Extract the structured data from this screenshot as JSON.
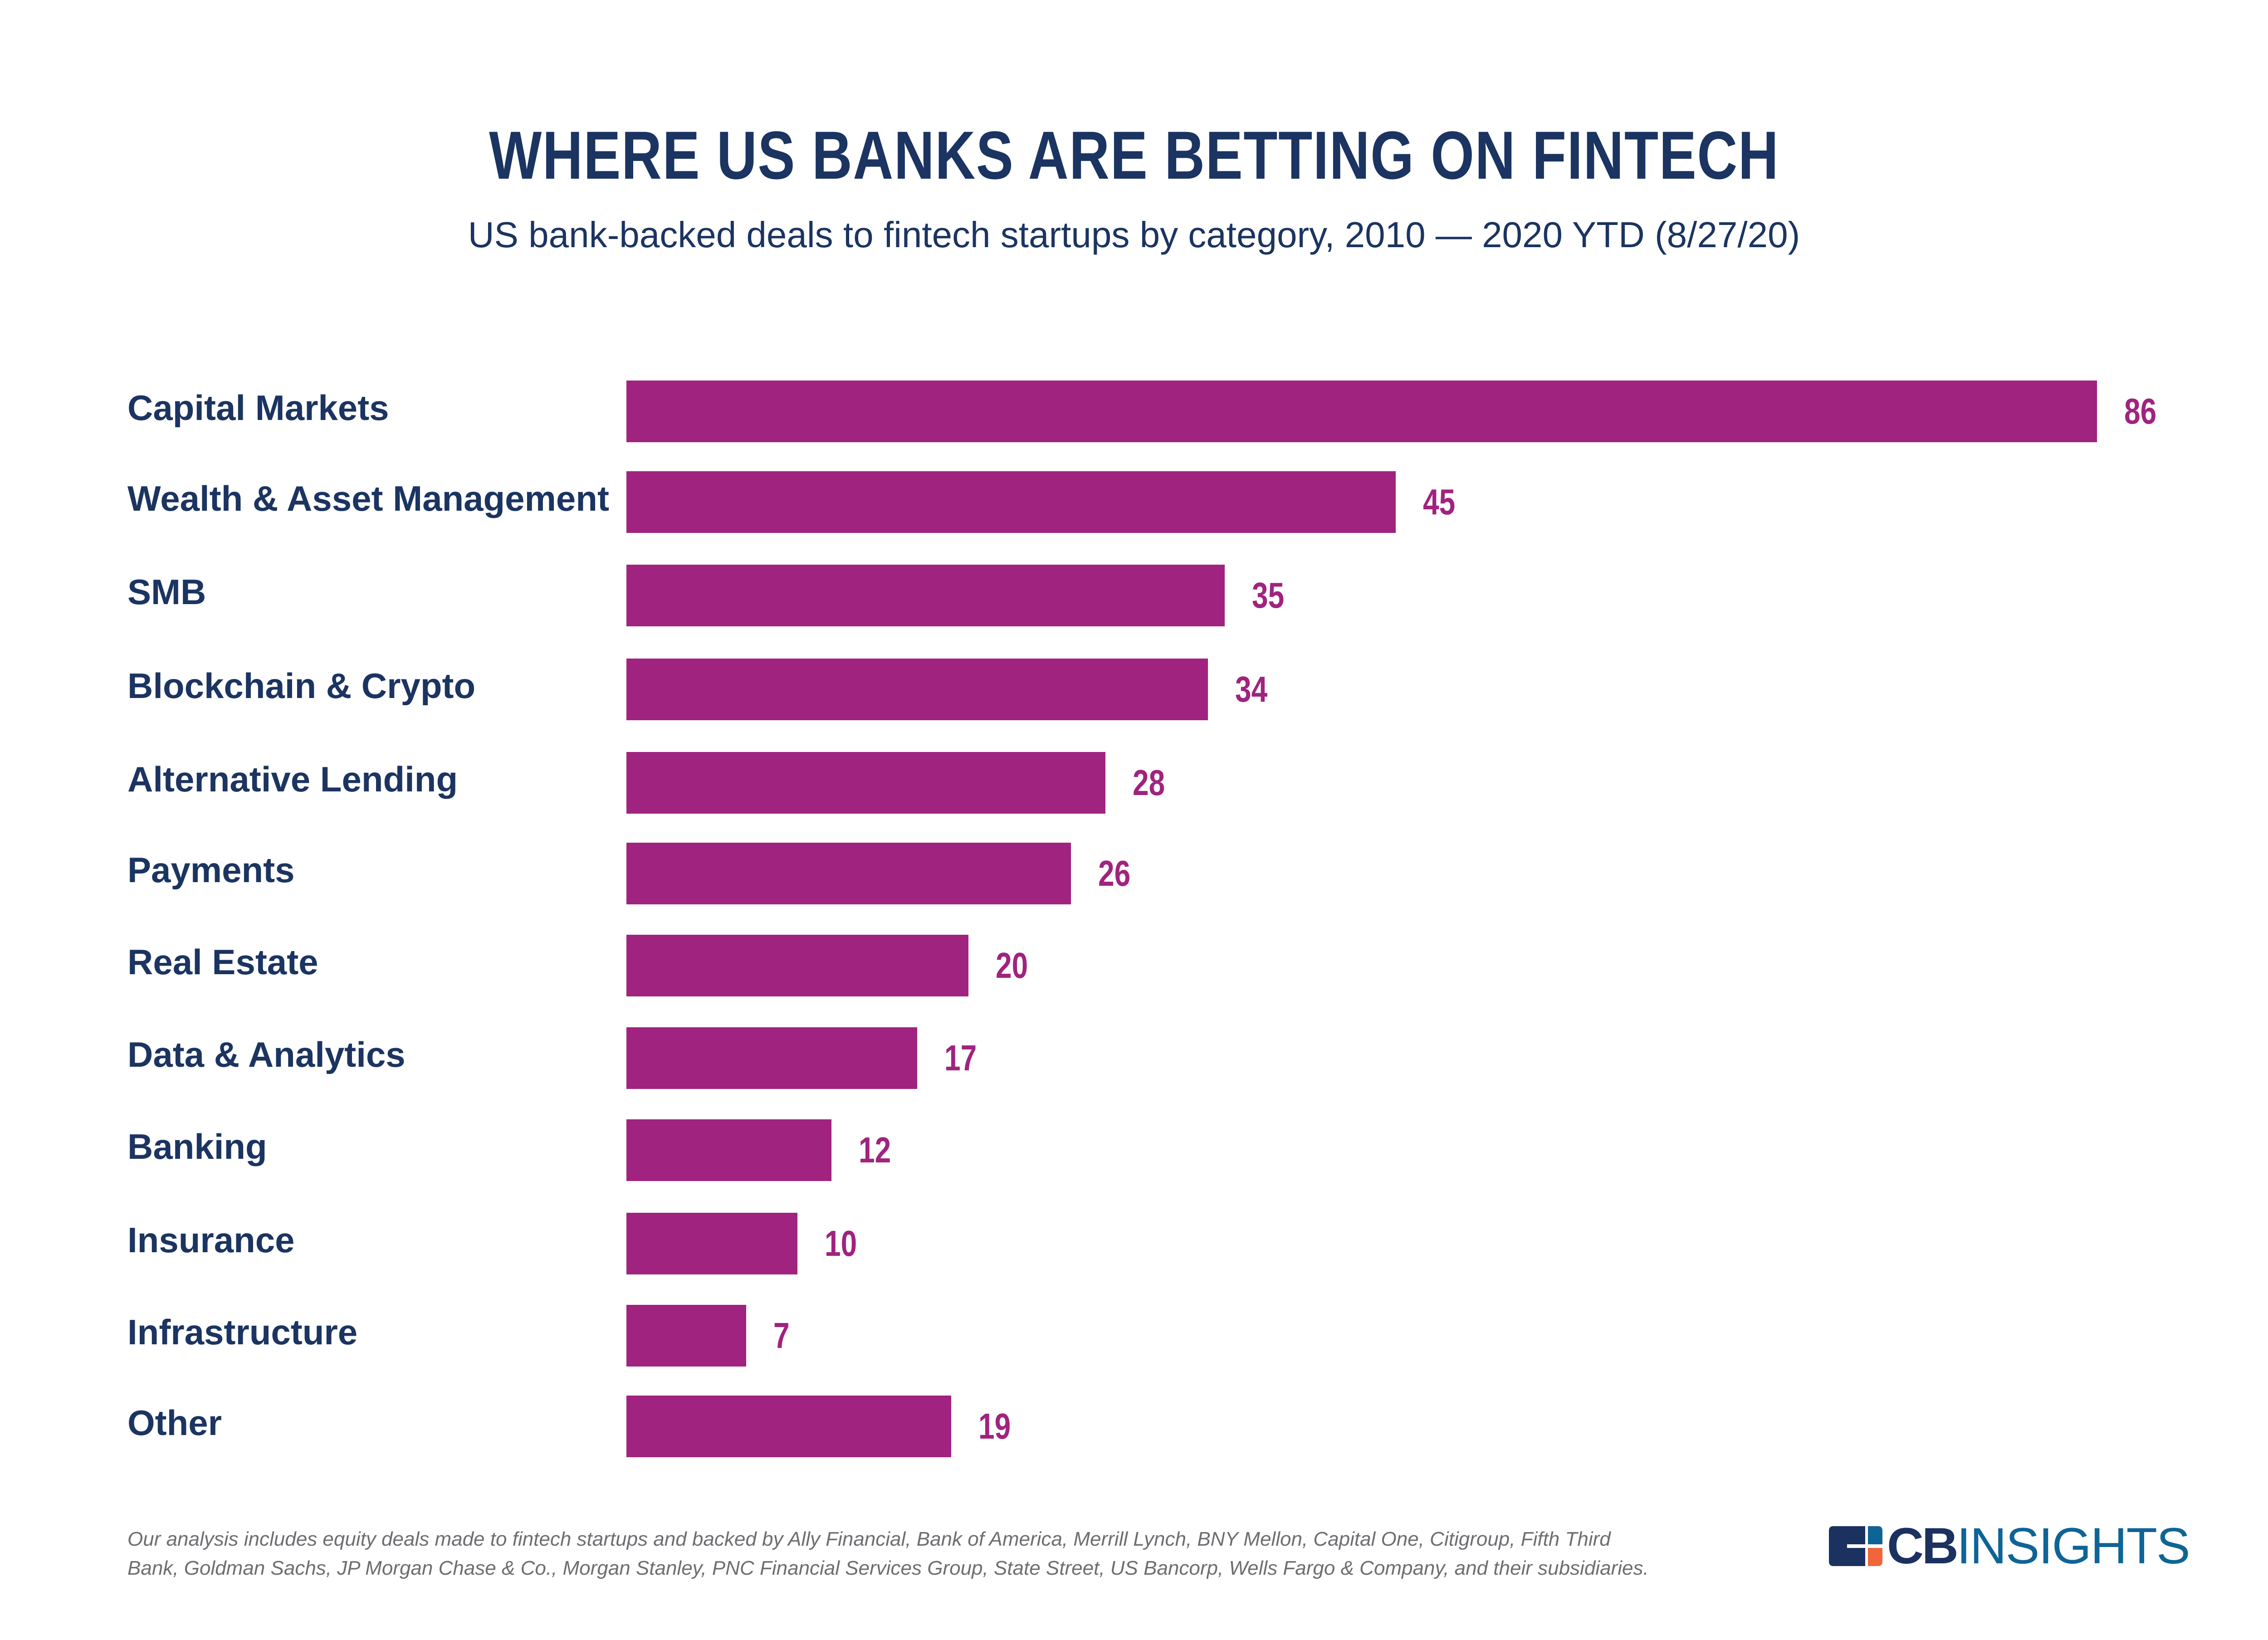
{
  "header": {
    "title": "WHERE US BANKS ARE BETTING ON FINTECH",
    "subtitle": "US bank-backed deals to fintech startups by category, 2010 — 2020 YTD (8/27/20)"
  },
  "colors": {
    "bar": "#A0237F",
    "label": "#1B3461",
    "value": "#A0237F",
    "footnote": "#6D6E71",
    "logo_navy": "#1B3160",
    "logo_blue": "#0F6496",
    "logo_orange": "#F0663A"
  },
  "chart_data": {
    "type": "bar",
    "orientation": "horizontal",
    "title": "WHERE US BANKS ARE BETTING ON FINTECH",
    "subtitle": "US bank-backed deals to fintech startups by category, 2010 — 2020 YTD (8/27/20)",
    "xlabel": "",
    "ylabel": "",
    "grid": false,
    "legend": null,
    "data_labels": true,
    "xlim": [
      0,
      86
    ],
    "categories": [
      "Capital Markets",
      "Wealth & Asset Management",
      "SMB",
      "Blockchain & Crypto",
      "Alternative Lending",
      "Payments",
      "Real Estate",
      "Data & Analytics",
      "Banking",
      "Insurance",
      "Infrastructure",
      "Other"
    ],
    "values": [
      86,
      45,
      35,
      34,
      28,
      26,
      20,
      17,
      12,
      10,
      7,
      19
    ],
    "rows": [
      {
        "label": "Capital Markets",
        "value": 86,
        "display": "86"
      },
      {
        "label": "Wealth & Asset Management",
        "value": 45,
        "display": "45"
      },
      {
        "label": "SMB",
        "value": 35,
        "display": "35"
      },
      {
        "label": "Blockchain & Crypto",
        "value": 34,
        "display": "34"
      },
      {
        "label": "Alternative Lending",
        "value": 28,
        "display": "28"
      },
      {
        "label": "Payments",
        "value": 26,
        "display": "26"
      },
      {
        "label": "Real Estate",
        "value": 20,
        "display": "20"
      },
      {
        "label": "Data & Analytics",
        "value": 17,
        "display": "17"
      },
      {
        "label": "Banking",
        "value": 12,
        "display": "12"
      },
      {
        "label": "Insurance",
        "value": 10,
        "display": "10"
      },
      {
        "label": "Infrastructure",
        "value": 7,
        "display": "7"
      },
      {
        "label": "Other",
        "value": 19,
        "display": "19"
      }
    ]
  },
  "footer": {
    "note_line1": "Our analysis includes equity deals made to fintech startups and backed by Ally Financial, Bank of America, Merrill Lynch, BNY Mellon, Capital One, Citigroup, Fifth Third",
    "note_line2": "Bank, Goldman Sachs, JP Morgan Chase & Co., Morgan Stanley, PNC Financial Services Group, State Street, US Bancorp, Wells Fargo & Company, and their subsidiaries.",
    "logo": {
      "icon": "cb-insights-logo-mark-icon",
      "text_bold": "CB",
      "text_light": "INSIGHTS"
    }
  }
}
